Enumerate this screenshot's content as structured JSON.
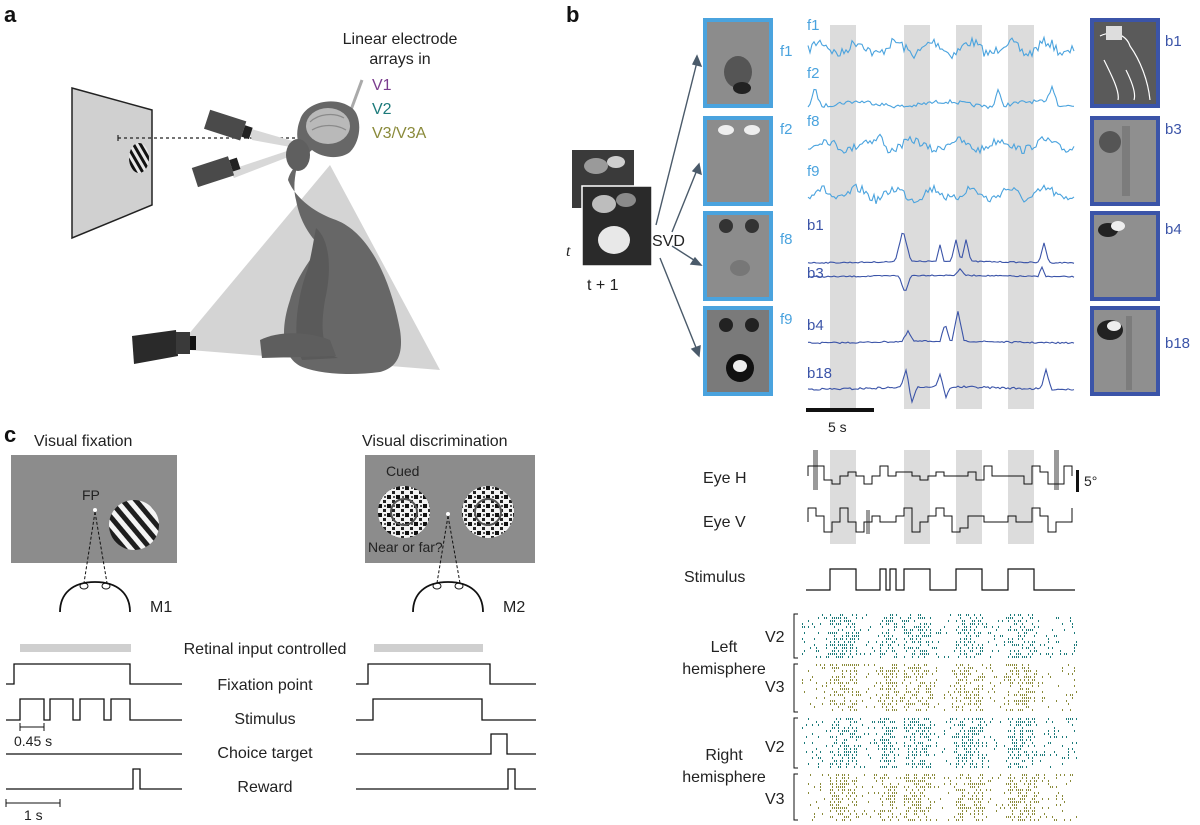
{
  "panels": {
    "a": "a",
    "b": "b",
    "c": "c"
  },
  "colors": {
    "v1": "#7b3d8e",
    "v2": "#1c7a7a",
    "v3": "#8a8a3a",
    "face": "#4aa3de",
    "body": "#3b54a8",
    "shade": "#dcdcdc",
    "bar": "#cfcfcf"
  },
  "panel_a": {
    "title_line1": "Linear electrode",
    "title_line2": "arrays in",
    "areas": [
      "V1",
      "V2",
      "V3/V3A"
    ]
  },
  "panel_b": {
    "frame_t": "t",
    "frame_t1": "t + 1",
    "svd": "SVD",
    "face_components": [
      "f1",
      "f2",
      "f8",
      "f9"
    ],
    "body_components": [
      "b1",
      "b3",
      "b4",
      "b18"
    ],
    "scalebar_label": "5 s",
    "eye_h": "Eye H",
    "eye_v": "Eye V",
    "eye_scale": "5°",
    "stimulus": "Stimulus",
    "hemispheres": [
      {
        "line1": "Left",
        "line2": "hemisphere",
        "areas": [
          "V2",
          "V3"
        ]
      },
      {
        "line1": "Right",
        "line2": "hemisphere",
        "areas": [
          "V2",
          "V3"
        ]
      }
    ]
  },
  "panel_c": {
    "left_title": "Visual fixation",
    "right_title": "Visual discrimination",
    "fp": "FP",
    "cued": "Cued",
    "near_far": "Near or far?",
    "m1": "M1",
    "m2": "M2",
    "retinal": "Retinal input controlled",
    "rows": [
      "Fixation point",
      "Stimulus",
      "Choice target",
      "Reward"
    ],
    "duration": "0.45 s",
    "scale": "1 s"
  }
}
